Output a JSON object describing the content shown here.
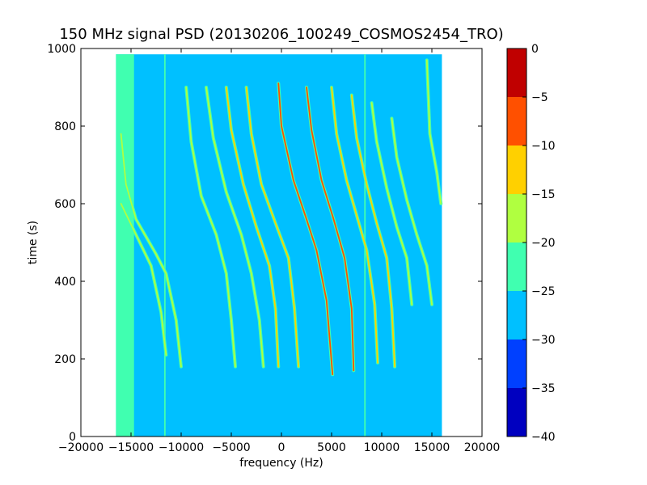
{
  "chart_data": {
    "type": "heatmap",
    "title": "150 MHz signal PSD (20130206_100249_COSMOS2454_TRO)",
    "xlabel": "frequency (Hz)",
    "ylabel": "time (s)",
    "xlim": [
      -20000,
      20000
    ],
    "ylim": [
      0,
      1000
    ],
    "x_ticks": [
      -20000,
      -15000,
      -10000,
      -5000,
      0,
      5000,
      10000,
      15000,
      20000
    ],
    "y_ticks": [
      0,
      200,
      400,
      600,
      800,
      1000
    ],
    "data_extent": {
      "x": [
        -16500,
        16000
      ],
      "y": [
        0,
        985
      ]
    },
    "background_level": -27.5,
    "colorbar": {
      "levels": [
        -40,
        -35,
        -30,
        -25,
        -20,
        -15,
        -10,
        -5,
        0
      ],
      "colors": [
        "#0000c0",
        "#0040ff",
        "#00c0ff",
        "#40ffb0",
        "#b0ff40",
        "#ffd000",
        "#ff5000",
        "#c00000"
      ],
      "tick_labels": [
        "-40",
        "-35",
        "-30",
        "-25",
        "-20",
        "-15",
        "-10",
        "-5",
        "0"
      ]
    },
    "bands": [
      {
        "x_range": [
          -16500,
          -14700
        ],
        "y_range": [
          0,
          985
        ],
        "level": -22.5
      },
      {
        "x_range": [
          8250,
          8400
        ],
        "y_range": [
          0,
          985
        ],
        "level": -22.5
      },
      {
        "x_range": [
          -11700,
          -11550
        ],
        "y_range": [
          0,
          985
        ],
        "level": -22.5
      }
    ],
    "series": [
      {
        "points": [
          [
            -16000,
            780
          ],
          [
            -15500,
            650
          ],
          [
            -14500,
            560
          ],
          [
            -12500,
            470
          ],
          [
            -11500,
            420
          ],
          [
            -10500,
            300
          ],
          [
            -10000,
            180
          ]
        ],
        "level": -17.5
      },
      {
        "points": [
          [
            -16000,
            600
          ],
          [
            -14500,
            520
          ],
          [
            -13000,
            440
          ],
          [
            -12000,
            320
          ],
          [
            -11500,
            210
          ]
        ],
        "level": -17.5
      },
      {
        "points": [
          [
            -9500,
            900
          ],
          [
            -9000,
            760
          ],
          [
            -8000,
            620
          ],
          [
            -6500,
            520
          ],
          [
            -5500,
            420
          ],
          [
            -5000,
            300
          ],
          [
            -4600,
            180
          ]
        ],
        "level": -17.5
      },
      {
        "points": [
          [
            -7500,
            900
          ],
          [
            -6800,
            770
          ],
          [
            -5500,
            630
          ],
          [
            -4000,
            520
          ],
          [
            -3000,
            420
          ],
          [
            -2200,
            300
          ],
          [
            -1800,
            180
          ]
        ],
        "level": -17.5
      },
      {
        "points": [
          [
            -5500,
            900
          ],
          [
            -5000,
            790
          ],
          [
            -3800,
            650
          ],
          [
            -2500,
            540
          ],
          [
            -1200,
            440
          ],
          [
            -600,
            330
          ],
          [
            -300,
            180
          ]
        ],
        "level": -15
      },
      {
        "points": [
          [
            -3500,
            900
          ],
          [
            -3000,
            780
          ],
          [
            -2000,
            650
          ],
          [
            -600,
            550
          ],
          [
            700,
            460
          ],
          [
            1300,
            330
          ],
          [
            1700,
            180
          ]
        ],
        "level": -15
      },
      {
        "points": [
          [
            -300,
            910
          ],
          [
            0,
            800
          ],
          [
            1200,
            660
          ],
          [
            2500,
            560
          ],
          [
            3500,
            480
          ],
          [
            4500,
            350
          ],
          [
            5100,
            160
          ]
        ],
        "level": -8
      },
      {
        "points": [
          [
            2500,
            900
          ],
          [
            3000,
            790
          ],
          [
            4000,
            660
          ],
          [
            5200,
            560
          ],
          [
            6300,
            460
          ],
          [
            7000,
            330
          ],
          [
            7200,
            170
          ]
        ],
        "level": -10
      },
      {
        "points": [
          [
            5000,
            900
          ],
          [
            5500,
            780
          ],
          [
            6500,
            660
          ],
          [
            7500,
            570
          ],
          [
            8500,
            480
          ],
          [
            9300,
            340
          ],
          [
            9600,
            190
          ]
        ],
        "level": -12
      },
      {
        "points": [
          [
            7000,
            880
          ],
          [
            7500,
            770
          ],
          [
            8500,
            650
          ],
          [
            9500,
            550
          ],
          [
            10500,
            460
          ],
          [
            11000,
            330
          ],
          [
            11300,
            180
          ]
        ],
        "level": -15
      },
      {
        "points": [
          [
            9000,
            860
          ],
          [
            9500,
            760
          ],
          [
            10500,
            640
          ],
          [
            11500,
            540
          ],
          [
            12500,
            460
          ],
          [
            13000,
            340
          ]
        ],
        "level": -17.5
      },
      {
        "points": [
          [
            11000,
            820
          ],
          [
            11500,
            720
          ],
          [
            12500,
            610
          ],
          [
            13500,
            520
          ],
          [
            14500,
            440
          ],
          [
            15000,
            340
          ]
        ],
        "level": -20
      },
      {
        "points": [
          [
            14500,
            970
          ],
          [
            14800,
            780
          ],
          [
            15500,
            680
          ],
          [
            15900,
            600
          ]
        ],
        "level": -17.5
      }
    ]
  }
}
